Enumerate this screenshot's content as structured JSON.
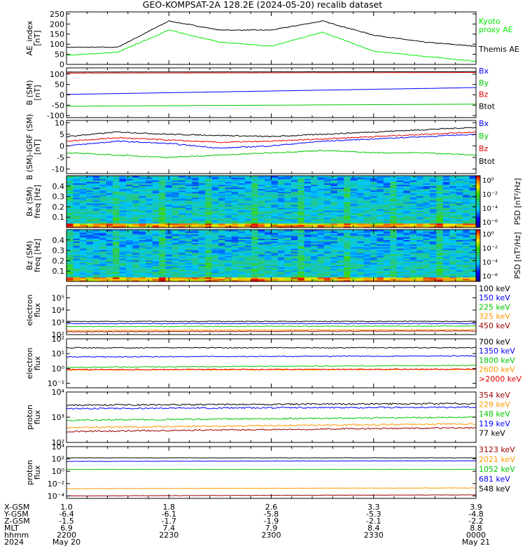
{
  "title": "GEO-KOMPSAT-2A 128.2E (2024-05-20) recalib dataset",
  "colors": {
    "black": "#000000",
    "green": "#00c800",
    "blue": "#0000ff",
    "red": "#e00000",
    "orange": "#ff9900",
    "darkred": "#990000",
    "lime": "#00ee00"
  },
  "panels": [
    {
      "id": "ae",
      "ylabel": [
        "AE_index",
        "[nT]"
      ],
      "scale": "linear",
      "ylim": [
        0,
        260
      ],
      "ticks": [
        "0",
        "50",
        "100",
        "150",
        "200",
        "250"
      ],
      "legend": [
        {
          "label": "Kyoto",
          "color": "lime"
        },
        {
          "label": "proxy AE",
          "color": "lime"
        },
        {
          "label": "",
          "color": "black"
        },
        {
          "label": "Themis AE",
          "color": "black"
        }
      ]
    },
    {
      "id": "b",
      "ylabel": [
        "B (SM)",
        "[nT]"
      ],
      "scale": "linear",
      "ylim": [
        -110,
        130
      ],
      "ticks": [
        "-100",
        "-50",
        "0",
        "50",
        "100"
      ],
      "legend": [
        {
          "label": "Bx",
          "color": "blue"
        },
        {
          "label": "By",
          "color": "green"
        },
        {
          "label": "Bz",
          "color": "red"
        },
        {
          "label": "Btot",
          "color": "black"
        }
      ]
    },
    {
      "id": "db",
      "ylabel": [
        "B (SM)-IGRF (SM)",
        "[nT]"
      ],
      "scale": "linear",
      "ylim": [
        -12,
        11
      ],
      "ticks": [
        "-10",
        "-5",
        "0",
        "5",
        "10"
      ],
      "legend": [
        {
          "label": "Bx",
          "color": "blue"
        },
        {
          "label": "By",
          "color": "green"
        },
        {
          "label": "Bz",
          "color": "red"
        },
        {
          "label": "Btot",
          "color": "black"
        }
      ]
    },
    {
      "id": "specx",
      "ylabel": [
        "Bx (SM)",
        "freq [Hz]"
      ],
      "scale": "spectrogram",
      "ylim": [
        0,
        0.5
      ],
      "ticks": [
        "0.1",
        "0.2",
        "0.3",
        "0.4"
      ],
      "colorbar": {
        "label": "PSD [nT²/Hz]",
        "ticks": [
          "10⁰",
          "10⁻²",
          "10⁻⁴",
          "10⁻⁶"
        ]
      }
    },
    {
      "id": "specz",
      "ylabel": [
        "Bz (SM)",
        "freq [Hz]"
      ],
      "scale": "spectrogram",
      "ylim": [
        0,
        0.5
      ],
      "ticks": [
        "0.1",
        "0.2",
        "0.3",
        "0.4"
      ],
      "colorbar": {
        "label": "PSD [nT²/Hz]",
        "ticks": [
          "10⁰",
          "10⁻²",
          "10⁻⁴",
          "10⁻⁶"
        ]
      }
    },
    {
      "id": "ef1",
      "ylabel": [
        "electron",
        "flux"
      ],
      "scale": "log",
      "ylim": [
        100,
        1000000
      ],
      "ticks": [
        "10²",
        "10³",
        "10⁴",
        "10⁵"
      ],
      "legend": [
        {
          "label": "100 keV",
          "color": "black"
        },
        {
          "label": "150 keV",
          "color": "blue"
        },
        {
          "label": "225 keV",
          "color": "green"
        },
        {
          "label": "325 keV",
          "color": "orange"
        },
        {
          "label": "450 keV",
          "color": "darkred"
        }
      ]
    },
    {
      "id": "ef2",
      "ylabel": [
        "electron",
        "flux"
      ],
      "scale": "log",
      "ylim": [
        0.05,
        100
      ],
      "ticks": [
        "10⁻¹",
        "10⁰",
        "10¹",
        "10²"
      ],
      "legend": [
        {
          "label": "700 keV",
          "color": "black"
        },
        {
          "label": "1350 keV",
          "color": "blue"
        },
        {
          "label": "1800 keV",
          "color": "green"
        },
        {
          "label": "2600 keV",
          "color": "orange"
        },
        {
          "label": ">2000 keV",
          "color": "red"
        }
      ]
    },
    {
      "id": "pf1",
      "ylabel": [
        "proton",
        "flux"
      ],
      "scale": "log",
      "ylim": [
        100,
        10000
      ],
      "ticks": [
        "10²",
        "10³",
        "10⁴"
      ],
      "legend": [
        {
          "label": "354 keV",
          "color": "darkred"
        },
        {
          "label": "229 keV",
          "color": "orange"
        },
        {
          "label": "148 keV",
          "color": "green"
        },
        {
          "label": "119 keV",
          "color": "blue"
        },
        {
          "label": "77 keV",
          "color": "black"
        }
      ]
    },
    {
      "id": "pf2",
      "ylabel": [
        "proton",
        "flux"
      ],
      "scale": "log",
      "ylim": [
        4e-05,
        10000
      ],
      "ticks": [
        "10⁻⁴",
        "10⁻²",
        "10⁰",
        "10²",
        "10⁴"
      ],
      "legend": [
        {
          "label": "3123 keV",
          "color": "darkred"
        },
        {
          "label": "2021 keV",
          "color": "orange"
        },
        {
          "label": "1052 keV",
          "color": "green"
        },
        {
          "label": "681 keV",
          "color": "blue"
        },
        {
          "label": "548 keV",
          "color": "black"
        }
      ]
    }
  ],
  "xaxis": {
    "row_labels": [
      "X-GSM",
      "Y-GSM",
      "Z-GSM",
      "MLT",
      "hhmm",
      "2024"
    ],
    "columns": [
      [
        "1.0",
        "-6.4",
        "-1.5",
        "6.9",
        "2200",
        "May 20"
      ],
      [
        "1.8",
        "-6.1",
        "-1.7",
        "7.4",
        "2230",
        ""
      ],
      [
        "2.6",
        "-5.8",
        "-1.9",
        "7.9",
        "2300",
        ""
      ],
      [
        "3.3",
        "-5.3",
        "-2.1",
        "8.4",
        "2330",
        ""
      ],
      [
        "3.9",
        "-4.8",
        "-2.2",
        "8.8",
        "0000",
        "May 21"
      ]
    ]
  },
  "chart_data": [
    {
      "type": "line",
      "panel": "ae",
      "x_unit": "hhmm",
      "x": [
        2200,
        2215,
        2230,
        2245,
        2300,
        2315,
        2330,
        2345,
        2400
      ],
      "series": [
        {
          "name": "Themis AE",
          "color": "black",
          "values": [
            85,
            85,
            215,
            170,
            170,
            215,
            145,
            110,
            90
          ]
        },
        {
          "name": "Kyoto proxy AE",
          "color": "lime",
          "values": [
            45,
            60,
            170,
            110,
            90,
            160,
            65,
            40,
            15
          ]
        }
      ]
    },
    {
      "type": "line",
      "panel": "b",
      "x_unit": "hhmm",
      "x": [
        2200,
        2400
      ],
      "series": [
        {
          "name": "Bx",
          "color": "blue",
          "values": [
            2,
            35
          ]
        },
        {
          "name": "By",
          "color": "green",
          "values": [
            -55,
            -45
          ]
        },
        {
          "name": "Bz",
          "color": "red",
          "values": [
            105,
            108
          ]
        },
        {
          "name": "Btot",
          "color": "black",
          "values": [
            110,
            112
          ]
        }
      ]
    },
    {
      "type": "line",
      "panel": "db",
      "x_unit": "hhmm",
      "x": [
        2200,
        2215,
        2230,
        2245,
        2300,
        2315,
        2330,
        2345,
        2400
      ],
      "series": [
        {
          "name": "Btot",
          "color": "black",
          "values": [
            4,
            6,
            5,
            4.5,
            4,
            5,
            6,
            7,
            8
          ]
        },
        {
          "name": "Bz",
          "color": "red",
          "values": [
            2,
            3.5,
            2.5,
            1.5,
            2,
            3,
            4,
            5,
            6
          ]
        },
        {
          "name": "Bx",
          "color": "blue",
          "values": [
            0,
            2,
            1,
            -1,
            0,
            2,
            3,
            4,
            5
          ]
        },
        {
          "name": "By",
          "color": "green",
          "values": [
            -3,
            -4,
            -5,
            -4,
            -3,
            -2,
            -3,
            -3,
            -4
          ]
        }
      ]
    },
    {
      "type": "line",
      "panel": "ef1",
      "x_unit": "hhmm",
      "x": [
        2200,
        2400
      ],
      "series": [
        {
          "name": "100 keV",
          "color": "black",
          "values": [
            1200,
            1200
          ]
        },
        {
          "name": "150 keV",
          "color": "blue",
          "values": [
            800,
            800
          ]
        },
        {
          "name": "225 keV",
          "color": "green",
          "values": [
            450,
            500
          ]
        },
        {
          "name": "325 keV",
          "color": "orange",
          "values": [
            220,
            250
          ]
        },
        {
          "name": "450 keV",
          "color": "darkred",
          "values": [
            170,
            200
          ]
        }
      ]
    },
    {
      "type": "line",
      "panel": "ef2",
      "x_unit": "hhmm",
      "x": [
        2200,
        2400
      ],
      "series": [
        {
          "name": "700 keV",
          "color": "black",
          "values": [
            25,
            25
          ]
        },
        {
          "name": "1350 keV",
          "color": "blue",
          "values": [
            6,
            7
          ]
        },
        {
          "name": "1800 keV",
          "color": "green",
          "values": [
            1.2,
            1.6
          ]
        },
        {
          "name": "2600 keV",
          "color": "orange",
          "values": [
            0.8,
            0.85
          ]
        },
        {
          "name": ">2000 keV",
          "color": "red",
          "values": [
            0.85,
            0.9
          ]
        }
      ]
    },
    {
      "type": "line",
      "panel": "pf1",
      "x_unit": "hhmm",
      "x": [
        2200,
        2400
      ],
      "series": [
        {
          "name": "77 keV",
          "color": "black",
          "values": [
            3000,
            3500
          ]
        },
        {
          "name": "119 keV",
          "color": "blue",
          "values": [
            2200,
            2500
          ]
        },
        {
          "name": "148 keV",
          "color": "green",
          "values": [
            750,
            1000
          ]
        },
        {
          "name": "229 keV",
          "color": "orange",
          "values": [
            380,
            550
          ]
        },
        {
          "name": "354 keV",
          "color": "darkred",
          "values": [
            270,
            380
          ]
        }
      ]
    },
    {
      "type": "line",
      "panel": "pf2",
      "x_unit": "hhmm",
      "x": [
        2200,
        2400
      ],
      "series": [
        {
          "name": "548 keV",
          "color": "black",
          "values": [
            150,
            150
          ]
        },
        {
          "name": "681 keV",
          "color": "blue",
          "values": [
            40,
            50
          ]
        },
        {
          "name": "1052 keV",
          "color": "green",
          "values": [
            2,
            2
          ]
        },
        {
          "name": "2021 keV",
          "color": "orange",
          "values": [
            0.0015,
            0.002
          ]
        },
        {
          "name": "3123 keV",
          "color": "darkred",
          "values": [
            0.0001,
            0.00015
          ]
        }
      ]
    }
  ]
}
